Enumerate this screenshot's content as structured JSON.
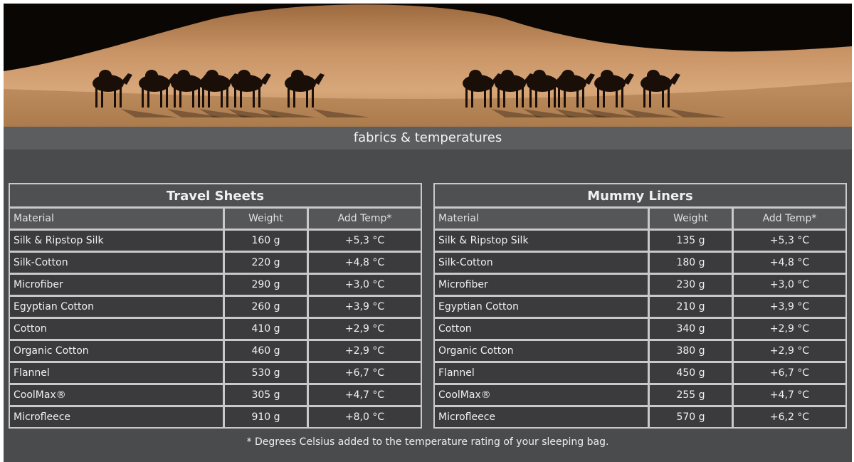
{
  "header": {
    "title": "fabrics & temperatures"
  },
  "columns": {
    "material": "Material",
    "weight": "Weight",
    "temp": "Add Temp*"
  },
  "tables": [
    {
      "title": "Travel Sheets",
      "rows": [
        [
          "Silk & Ripstop Silk",
          "160 g",
          "+5,3 °C"
        ],
        [
          "Silk-Cotton",
          "220 g",
          "+4,8 °C"
        ],
        [
          "Microfiber",
          "290 g",
          "+3,0 °C"
        ],
        [
          "Egyptian Cotton",
          "260 g",
          "+3,9 °C"
        ],
        [
          "Cotton",
          "410 g",
          "+2,9 °C"
        ],
        [
          "Organic Cotton",
          "460 g",
          "+2,9 °C"
        ],
        [
          "Flannel",
          "530 g",
          "+6,7 °C"
        ],
        [
          "CoolMax®",
          "305 g",
          "+4,7 °C"
        ],
        [
          "Microfleece",
          "910 g",
          "+8,0 °C"
        ]
      ]
    },
    {
      "title": "Mummy Liners",
      "rows": [
        [
          "Silk & Ripstop Silk",
          "135 g",
          "+5,3 °C"
        ],
        [
          "Silk-Cotton",
          "180 g",
          "+4,8 °C"
        ],
        [
          "Microfiber",
          "230 g",
          "+3,0 °C"
        ],
        [
          "Egyptian Cotton",
          "210 g",
          "+3,9 °C"
        ],
        [
          "Cotton",
          "340 g",
          "+2,9 °C"
        ],
        [
          "Organic Cotton",
          "380 g",
          "+2,9 °C"
        ],
        [
          "Flannel",
          "450 g",
          "+6,7 °C"
        ],
        [
          "CoolMax®",
          "255 g",
          "+4,7 °C"
        ],
        [
          "Microfleece",
          "570 g",
          "+6,2 °C"
        ]
      ]
    }
  ],
  "footnote": "* Degrees Celsius added to the temperature rating of your sleeping bag.",
  "banner": {
    "image": "desert-camel-caravan-photo"
  }
}
